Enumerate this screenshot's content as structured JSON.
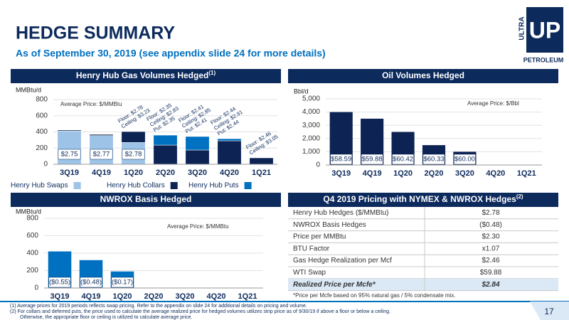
{
  "header": {
    "title": "HEDGE SUMMARY",
    "subtitle": "As of September 30, 2019 (see appendix slide 24 for more details)"
  },
  "logo": {
    "side": "ULTRA",
    "mark": "UP",
    "name": "PETROLEUM"
  },
  "chart_data": [
    {
      "type": "bar",
      "stacked": true,
      "title": "Henry Hub Gas Volumes Hedged",
      "title_note": "(1)",
      "y_label": "MMBtu/d",
      "note": "Average Price:  $/MMBtu",
      "categories": [
        "3Q19",
        "4Q19",
        "1Q20",
        "2Q20",
        "3Q20",
        "4Q20",
        "1Q21"
      ],
      "series": [
        {
          "name": "Henry Hub Swaps",
          "color": "#9dc3e6",
          "values": [
            410,
            355,
            270,
            null,
            null,
            null,
            null
          ]
        },
        {
          "name": "Henry Hub Collars",
          "color": "#0c2353",
          "values": [
            12,
            14,
            134,
            237,
            176,
            290,
            79
          ]
        },
        {
          "name": "Henry Hub Puts",
          "color": "#0070c0",
          "values": [
            null,
            null,
            null,
            123,
            167,
            26,
            null
          ]
        }
      ],
      "ylim": [
        0,
        800
      ],
      "yticks": [
        0,
        200,
        400,
        600,
        800
      ],
      "grid": true,
      "price_labels": [
        "$2.75",
        "$2.77",
        "$2.78",
        null,
        null,
        null,
        null
      ],
      "annotations": [
        null,
        null,
        [
          "Floor: $2.78",
          "Ceiling: $3.23"
        ],
        [
          "Floor: $2.35",
          "Ceiling: $2.83",
          "Put: $2.35"
        ],
        [
          "Floor: $2.41",
          "Ceiling: $2.85",
          "Put: $2.41"
        ],
        [
          "Floor: $2.44",
          "Ceiling: $2.91",
          "Put: $2.44"
        ],
        [
          "Floor: $2.46",
          "Ceiling: $3.05"
        ]
      ]
    },
    {
      "type": "bar",
      "title": "Oil Volumes Hedged",
      "y_label": "Bbl/d",
      "note": "Average Price: $/Bbl",
      "categories": [
        "3Q19",
        "4Q19",
        "1Q20",
        "2Q20",
        "3Q20",
        "4Q20",
        "1Q21"
      ],
      "values": [
        4000,
        3500,
        2500,
        1500,
        1000,
        null,
        null
      ],
      "color": "#0c2353",
      "ylim": [
        0,
        5000
      ],
      "yticks": [
        0,
        {
          "value": 1000,
          "label": "1,000"
        },
        {
          "value": 2000,
          "label": "2,000"
        },
        {
          "value": 3000,
          "label": "3,000"
        },
        {
          "value": 4000,
          "label": "4,000"
        },
        {
          "value": 5000,
          "label": "5,000"
        }
      ],
      "grid": true,
      "price_labels": [
        "$58.59",
        "$59.88",
        "$60.42",
        "$60.33",
        "$60.00",
        null,
        null
      ]
    },
    {
      "type": "bar",
      "title": "NWROX Basis Hedged",
      "y_label": "MMBtu/d",
      "note": "Average Price:  $/MMBtu",
      "categories": [
        "3Q19",
        "4Q19",
        "1Q20",
        "2Q20",
        "3Q20",
        "4Q20",
        "1Q21"
      ],
      "values": [
        420,
        320,
        190,
        null,
        null,
        null,
        null
      ],
      "color": "#0070c0",
      "ylim": [
        0,
        800
      ],
      "yticks": [
        0,
        200,
        400,
        600,
        800
      ],
      "grid": true,
      "price_labels": [
        "($0.55)",
        "($0.48)",
        "($0.17)",
        null,
        null,
        null,
        null
      ]
    }
  ],
  "table": {
    "title": "Q4 2019 Pricing with NYMEX & NWROX Hedges",
    "title_note": "(2)",
    "rows": [
      [
        "Henry Hub Hedges ($/MMBtu)",
        "$2.78"
      ],
      [
        "NWROX Basis Hedges",
        "($0.48)"
      ],
      [
        "Price per MMBtu",
        "$2.30"
      ],
      [
        "BTU Factor",
        "x1.07"
      ],
      [
        "Gas Hedge Realization per Mcf",
        "$2.46"
      ],
      [
        "WTI Swap",
        "$59.88"
      ],
      [
        "Realized Price per Mcfe*",
        "$2.84"
      ]
    ],
    "footnote": "*Price per Mcfe based on 95% natural gas / 5% condensate mix."
  },
  "footnotes": [
    "(1)  Average prices for 2019 periods reflects swap pricing. Refer to the appendix on slide 24 for additional details on pricing and volume.",
    "(2)  For collars and deferred puts, the price used to calculate the average realized price for hedged volumes utilizes strip price as of 9/30/19 if above a floor or below a ceiling.",
    "Otherwise, the appropriate floor or ceiling is utilized to calculate average price."
  ],
  "page_number": 17
}
